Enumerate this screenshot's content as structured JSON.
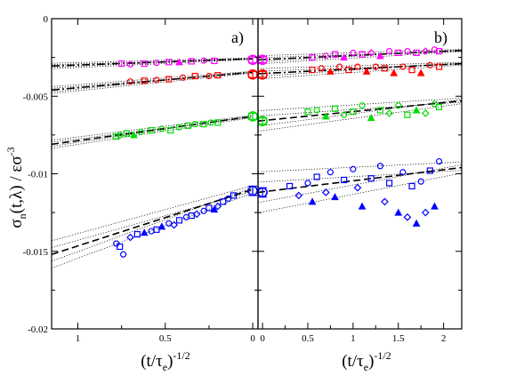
{
  "chart_data": [
    {
      "type": "scatter",
      "panel_label": "a)",
      "xlabel": {
        "base": "(t/τ",
        "sub": "e",
        "close": ")",
        "sup": "-1/2"
      },
      "ylabel": {
        "base": "σ",
        "sub": "n",
        "mid": "(t,λ) / εσ",
        "sup": "-3"
      },
      "xlim": [
        1.15,
        -0.03
      ],
      "ylim": [
        -0.02,
        0
      ],
      "x_ticks": [
        1,
        0.5,
        0
      ],
      "x_tick_labels": [
        "1",
        "0.5",
        "0"
      ],
      "y_ticks": [
        0,
        -0.005,
        -0.01,
        -0.015,
        -0.02
      ],
      "y_tick_labels": [
        "0",
        "-0.005",
        "-0.01",
        "-0.015",
        "-0.02"
      ],
      "grid": false,
      "series": [
        {
          "color": "#ff00ff",
          "fit": {
            "x0": 1.15,
            "y0": -0.00305,
            "x1": 0.0,
            "y1": -0.00258
          },
          "band": 8e-05,
          "extrap": {
            "x": 0.0,
            "y": -0.00265,
            "err": 0.0002
          },
          "points": [
            [
              0.75,
              -0.0029,
              "s"
            ],
            [
              0.7,
              -0.00295,
              "o"
            ],
            [
              0.62,
              -0.0029,
              "s"
            ],
            [
              0.55,
              -0.00285,
              "o"
            ],
            [
              0.48,
              -0.0028,
              "s"
            ],
            [
              0.42,
              -0.0028,
              "^"
            ],
            [
              0.35,
              -0.00275,
              "s"
            ],
            [
              0.28,
              -0.0027,
              "o"
            ],
            [
              0.22,
              -0.00272,
              "s"
            ]
          ]
        },
        {
          "color": "#ff0000",
          "fit": {
            "x0": 1.15,
            "y0": -0.0046,
            "x1": 0.0,
            "y1": -0.00345
          },
          "band": 0.0001,
          "extrap": {
            "x": 0.0,
            "y": -0.0036,
            "err": 0.0002
          },
          "points": [
            [
              0.7,
              -0.00405,
              "o"
            ],
            [
              0.62,
              -0.004,
              "s"
            ],
            [
              0.55,
              -0.00395,
              "o"
            ],
            [
              0.48,
              -0.0039,
              "s"
            ],
            [
              0.4,
              -0.0038,
              "o"
            ],
            [
              0.33,
              -0.0037,
              "s"
            ],
            [
              0.25,
              -0.0037,
              "o"
            ],
            [
              0.2,
              -0.00365,
              "s"
            ]
          ]
        },
        {
          "color": "#00dd00",
          "fit": {
            "x0": 1.15,
            "y0": -0.0081,
            "x1": 0.0,
            "y1": -0.0063
          },
          "band": 0.00012,
          "extrap": {
            "x": 0.0,
            "y": -0.0063,
            "err": 0.0002
          },
          "points": [
            [
              0.78,
              -0.0076,
              "s"
            ],
            [
              0.76,
              -0.0075,
              "o"
            ],
            [
              0.72,
              -0.0074,
              "s"
            ],
            [
              0.68,
              -0.0075,
              "^"
            ],
            [
              0.64,
              -0.0073,
              "o"
            ],
            [
              0.58,
              -0.0072,
              "s"
            ],
            [
              0.52,
              -0.0071,
              "o"
            ],
            [
              0.47,
              -0.0072,
              "s"
            ],
            [
              0.42,
              -0.007,
              "o"
            ],
            [
              0.37,
              -0.0069,
              "s"
            ],
            [
              0.33,
              -0.0068,
              "o"
            ],
            [
              0.28,
              -0.0068,
              "s"
            ],
            [
              0.24,
              -0.0067,
              "o"
            ],
            [
              0.2,
              -0.0067,
              "s"
            ]
          ]
        },
        {
          "color": "#0000ff",
          "fit": {
            "x0": 1.15,
            "y0": -0.0152,
            "x1": 0.0,
            "y1": -0.011
          },
          "band": 0.0004,
          "extrap": {
            "x": 0.0,
            "y": -0.0111,
            "err": 0.0003
          },
          "points": [
            [
              0.78,
              -0.0145,
              "o"
            ],
            [
              0.76,
              -0.0147,
              "s"
            ],
            [
              0.74,
              -0.0152,
              "o"
            ],
            [
              0.7,
              -0.0141,
              "d"
            ],
            [
              0.66,
              -0.0139,
              "s"
            ],
            [
              0.62,
              -0.0138,
              "^"
            ],
            [
              0.58,
              -0.0137,
              "o"
            ],
            [
              0.55,
              -0.0136,
              "s"
            ],
            [
              0.52,
              -0.0134,
              "^"
            ],
            [
              0.48,
              -0.0132,
              "o"
            ],
            [
              0.45,
              -0.0133,
              "d"
            ],
            [
              0.42,
              -0.013,
              "s"
            ],
            [
              0.38,
              -0.0128,
              "o"
            ],
            [
              0.35,
              -0.0127,
              "s"
            ],
            [
              0.32,
              -0.0126,
              "d"
            ],
            [
              0.28,
              -0.0124,
              "o"
            ],
            [
              0.25,
              -0.0122,
              "s"
            ],
            [
              0.22,
              -0.0123,
              "^"
            ],
            [
              0.2,
              -0.0121,
              "d"
            ],
            [
              0.17,
              -0.0118,
              "s"
            ],
            [
              0.14,
              -0.0116,
              "o"
            ],
            [
              0.11,
              -0.0114,
              "s"
            ]
          ]
        }
      ]
    },
    {
      "type": "scatter",
      "panel_label": "b)",
      "xlabel": {
        "base": "(t/τ",
        "sub": "e",
        "close": ")",
        "sup": "-1/2"
      },
      "xlim": [
        -0.05,
        2.2
      ],
      "ylim": [
        -0.02,
        0
      ],
      "x_ticks": [
        0,
        0.5,
        1,
        1.5,
        2
      ],
      "x_tick_labels": [
        "0",
        "0.5",
        "1",
        "1.5",
        "2"
      ],
      "grid": false,
      "series": [
        {
          "color": "#ff00ff",
          "fit": {
            "x0": -0.05,
            "y0": -0.00265,
            "x1": 2.2,
            "y1": -0.00205
          },
          "band": 0.00012,
          "extrap": {
            "x": 0.0,
            "y": -0.00265,
            "err": 0.0002
          },
          "points": [
            [
              0.55,
              -0.0025,
              "s"
            ],
            [
              0.7,
              -0.0024,
              "o"
            ],
            [
              0.8,
              -0.0023,
              "s"
            ],
            [
              0.9,
              -0.0025,
              "^"
            ],
            [
              1.0,
              -0.0022,
              "o"
            ],
            [
              1.1,
              -0.0023,
              "s"
            ],
            [
              1.2,
              -0.0022,
              "d"
            ],
            [
              1.3,
              -0.0024,
              "^"
            ],
            [
              1.4,
              -0.0021,
              "o"
            ],
            [
              1.5,
              -0.0022,
              "s"
            ],
            [
              1.6,
              -0.0021,
              "o"
            ],
            [
              1.7,
              -0.0022,
              "s"
            ],
            [
              1.8,
              -0.0021,
              "d"
            ],
            [
              1.9,
              -0.002,
              "o"
            ],
            [
              1.95,
              -0.0021,
              "s"
            ]
          ]
        },
        {
          "color": "#ff0000",
          "fit": {
            "x0": -0.05,
            "y0": -0.00355,
            "x1": 2.2,
            "y1": -0.0029
          },
          "band": 0.00015,
          "extrap": {
            "x": 0.0,
            "y": -0.0036,
            "err": 0.0002
          },
          "points": [
            [
              0.55,
              -0.0033,
              "s"
            ],
            [
              0.65,
              -0.0032,
              "o"
            ],
            [
              0.75,
              -0.0034,
              "^"
            ],
            [
              0.85,
              -0.0031,
              "o"
            ],
            [
              0.95,
              -0.0033,
              "s"
            ],
            [
              1.05,
              -0.0031,
              "o"
            ],
            [
              1.15,
              -0.0034,
              "^"
            ],
            [
              1.25,
              -0.0031,
              "o"
            ],
            [
              1.35,
              -0.0032,
              "s"
            ],
            [
              1.45,
              -0.0035,
              "^"
            ],
            [
              1.55,
              -0.0031,
              "o"
            ],
            [
              1.65,
              -0.0033,
              "s"
            ],
            [
              1.75,
              -0.0035,
              "^"
            ],
            [
              1.85,
              -0.003,
              "o"
            ],
            [
              1.95,
              -0.0031,
              "s"
            ]
          ]
        },
        {
          "color": "#00dd00",
          "fit": {
            "x0": -0.05,
            "y0": -0.0066,
            "x1": 2.2,
            "y1": -0.0053
          },
          "band": 0.0003,
          "extrap": {
            "x": 0.0,
            "y": -0.0066,
            "err": 0.0002
          },
          "points": [
            [
              0.5,
              -0.006,
              "s"
            ],
            [
              0.6,
              -0.0059,
              "o"
            ],
            [
              0.7,
              -0.0063,
              "^"
            ],
            [
              0.8,
              -0.0058,
              "s"
            ],
            [
              0.9,
              -0.0062,
              "o"
            ],
            [
              1.0,
              -0.006,
              "s"
            ],
            [
              1.1,
              -0.0056,
              "o"
            ],
            [
              1.2,
              -0.0064,
              "^"
            ],
            [
              1.3,
              -0.0059,
              "s"
            ],
            [
              1.4,
              -0.0061,
              "d"
            ],
            [
              1.5,
              -0.0056,
              "o"
            ],
            [
              1.6,
              -0.0062,
              "s"
            ],
            [
              1.7,
              -0.0059,
              "^"
            ],
            [
              1.8,
              -0.0061,
              "d"
            ],
            [
              1.9,
              -0.0055,
              "o"
            ],
            [
              1.95,
              -0.0057,
              "s"
            ]
          ]
        },
        {
          "color": "#0000ff",
          "fit": {
            "x0": -0.05,
            "y0": -0.0112,
            "x1": 2.2,
            "y1": -0.0096
          },
          "band": 0.0006,
          "extrap": {
            "x": 0.0,
            "y": -0.0112,
            "err": 0.0003
          },
          "points": [
            [
              0.3,
              -0.0108,
              "s"
            ],
            [
              0.4,
              -0.0114,
              "d"
            ],
            [
              0.5,
              -0.0106,
              "o"
            ],
            [
              0.55,
              -0.0118,
              "^"
            ],
            [
              0.6,
              -0.0102,
              "s"
            ],
            [
              0.7,
              -0.0112,
              "d"
            ],
            [
              0.75,
              -0.0099,
              "o"
            ],
            [
              0.8,
              -0.0115,
              "^"
            ],
            [
              0.9,
              -0.0104,
              "s"
            ],
            [
              1.0,
              -0.0097,
              "o"
            ],
            [
              1.05,
              -0.0109,
              "d"
            ],
            [
              1.1,
              -0.0121,
              "^"
            ],
            [
              1.2,
              -0.0103,
              "s"
            ],
            [
              1.3,
              -0.0095,
              "o"
            ],
            [
              1.35,
              -0.0118,
              "d"
            ],
            [
              1.4,
              -0.0106,
              "s"
            ],
            [
              1.5,
              -0.0125,
              "^"
            ],
            [
              1.55,
              -0.0099,
              "o"
            ],
            [
              1.6,
              -0.0128,
              "d"
            ],
            [
              1.65,
              -0.0108,
              "s"
            ],
            [
              1.7,
              -0.0132,
              "^"
            ],
            [
              1.75,
              -0.0105,
              "o"
            ],
            [
              1.8,
              -0.0125,
              "d"
            ],
            [
              1.85,
              -0.0098,
              "s"
            ],
            [
              1.9,
              -0.0121,
              "^"
            ],
            [
              1.95,
              -0.0092,
              "o"
            ]
          ]
        }
      ]
    }
  ]
}
